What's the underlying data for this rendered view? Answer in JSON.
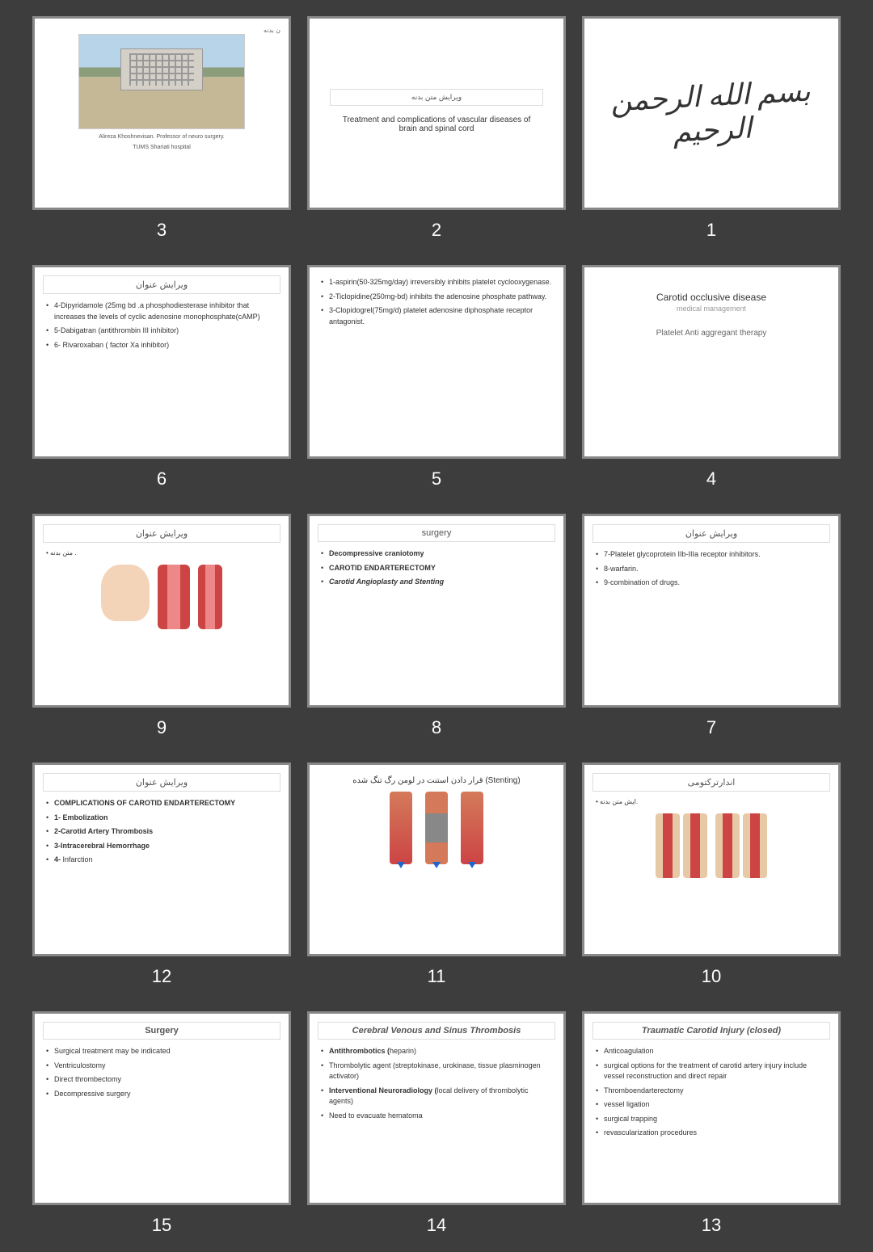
{
  "slides": [
    {
      "num": "3",
      "type": "photo",
      "caption1": "Alireza Khoshnevisan. Professor of neuro surgery.",
      "caption2": "TUMS Shariati hospital",
      "topLabel": "ن بدنه"
    },
    {
      "num": "2",
      "type": "titlecard",
      "edit": "ویرایش متن بدنه",
      "main": "Treatment and complications of vascular diseases of brain and spinal cord"
    },
    {
      "num": "1",
      "type": "calli",
      "text": "بسم الله الرحمن الرحیم"
    },
    {
      "num": "6",
      "type": "list",
      "title": "ویرایش عنوان",
      "items": [
        "4-Dipyridamole (25mg bd .a phosphodiesterase inhibitor that increases the levels of cyclic adenosine monophosphate(cAMP)",
        "5-Dabigatran (antithrombin III inhibitor)",
        "6- Rivaroxaban ( factor Xa inhibitor)"
      ]
    },
    {
      "num": "5",
      "type": "list",
      "title": "",
      "items": [
        "1-aspirin(50-325mg/day) irreversibly inhibits platelet cyclooxygenase.",
        "2-Ticlopidine(250mg-bd)  inhibits the adenosine phosphate pathway.",
        "3-Clopidogrel(75mg/d) platelet adenosine diphosphate receptor antagonist."
      ]
    },
    {
      "num": "4",
      "type": "titlecenter",
      "title": "Carotid occlusive disease",
      "sub": "medical management",
      "note": "Platelet  Anti aggregant  therapy"
    },
    {
      "num": "9",
      "type": "anat",
      "title": "ویرایش عنوان",
      "label": "متن بدنه ."
    },
    {
      "num": "8",
      "type": "list",
      "title": "surgery",
      "items": [
        "<b>Decompressive craniotomy</b>",
        "<b>CAROTID ENDARTERECTOMY</b>",
        "<b><i>Carotid Angioplasty and Stenting</i></b>"
      ]
    },
    {
      "num": "7",
      "type": "list",
      "title": "ویرایش عنوان",
      "items": [
        "7-Platelet glycoprotein IIb-IIIa receptor inhibitors.",
        "8-warfarin.",
        "9-combination of drugs."
      ]
    },
    {
      "num": "12",
      "type": "list",
      "title": "ویرایش عنوان",
      "items": [
        "<b>COMPLICATIONS OF CAROTID ENDARTERECTOMY</b>",
        "<b>1- Embolization</b>",
        "<b>2-Carotid Artery Thrombosis</b>",
        "<b>3-Intracerebral Hemorrhage</b>",
        "<b>4-</b> Infarction"
      ]
    },
    {
      "num": "11",
      "type": "stent",
      "title": "قرار دادن استنت در لومن رگ تنگ شده (Stenting)"
    },
    {
      "num": "10",
      "type": "endar",
      "title": "اندارترکتومی",
      "label": "ایش متن بدنه."
    },
    {
      "num": "15",
      "type": "list",
      "title": "Surgery",
      "items": [
        "Surgical treatment may be indicated",
        "Ventriculostomy",
        "Direct thrombectomy",
        "Decompressive surgery"
      ],
      "titleBold": true
    },
    {
      "num": "14",
      "type": "list",
      "title": "Cerebral Venous and Sinus Thrombosis",
      "items": [
        "<b>Antithrombotics (</b>heparin)",
        "Thrombolytic agent (streptokinase, urokinase, tissue plasminogen activator)",
        "<b>Interventional Neuroradiology (</b>local delivery of thrombolytic agents)",
        "Need to evacuate hematoma"
      ],
      "titleItalic": true
    },
    {
      "num": "13",
      "type": "list",
      "title": "Traumatic Carotid Injury (closed)",
      "items": [
        "Anticoagulation",
        " surgical options for the treatment of carotid artery injury include vessel reconstruction and direct repair",
        "Thromboendarterectomy",
        "vessel ligation",
        " surgical trapping",
        "revascularization procedures"
      ],
      "titleItalic": true
    }
  ],
  "colors": {
    "bg": "#3d3d3d",
    "slide_bg": "#ffffff",
    "border": "#888888",
    "text": "#333333",
    "num": "#ffffff"
  }
}
